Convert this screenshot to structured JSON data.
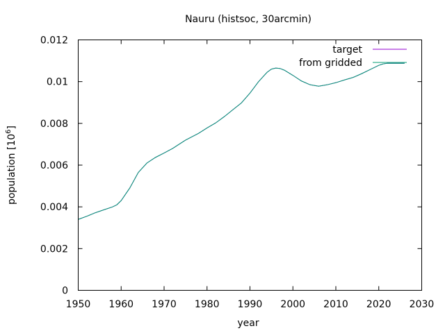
{
  "chart_data": {
    "type": "line",
    "title": "Nauru (histsoc, 30arcmin)",
    "xlabel": "year",
    "ylabel_text": "population [10",
    "ylabel_exp": "6",
    "ylabel_close": "]",
    "xlim": [
      1950,
      2030
    ],
    "ylim": [
      0,
      0.012
    ],
    "x_ticks": [
      1950,
      1960,
      1970,
      1980,
      1990,
      2000,
      2010,
      2020,
      2030
    ],
    "x_tick_labels": [
      "1950",
      "1960",
      "1970",
      "1980",
      "1990",
      "2000",
      "2010",
      "2020",
      "2030"
    ],
    "y_ticks": [
      0,
      0.002,
      0.004,
      0.006,
      0.008,
      0.01,
      0.012
    ],
    "y_tick_labels": [
      "0",
      "0.002",
      "0.004",
      "0.006",
      "0.008",
      "0.01",
      "0.012"
    ],
    "grid": false,
    "legend_position": "top-right",
    "series": [
      {
        "name": "target",
        "color": "#9400d3",
        "x": [
          1950,
          1952,
          1954,
          1956,
          1958,
          1959,
          1960,
          1962,
          1964,
          1966,
          1968,
          1970,
          1972,
          1975,
          1978,
          1980,
          1982,
          1984,
          1986,
          1988,
          1990,
          1992,
          1994,
          1995,
          1996,
          1997,
          1998,
          2000,
          2002,
          2004,
          2006,
          2008,
          2010,
          2012,
          2014,
          2016,
          2018,
          2020,
          2021,
          2022,
          2024,
          2026
        ],
        "y": [
          0.0034,
          0.00355,
          0.00372,
          0.00386,
          0.004,
          0.0041,
          0.0043,
          0.0049,
          0.00565,
          0.0061,
          0.00637,
          0.00658,
          0.0068,
          0.0072,
          0.00752,
          0.00778,
          0.00802,
          0.00832,
          0.00865,
          0.00898,
          0.00945,
          0.01,
          0.01045,
          0.0106,
          0.01065,
          0.01063,
          0.01055,
          0.0103,
          0.01003,
          0.00985,
          0.00978,
          0.00985,
          0.00995,
          0.01008,
          0.0102,
          0.01038,
          0.01058,
          0.01078,
          0.01085,
          0.01088,
          0.01088,
          0.01088
        ]
      },
      {
        "name": "from gridded",
        "color": "#009e73",
        "x": [
          1950,
          1952,
          1954,
          1956,
          1958,
          1959,
          1960,
          1962,
          1964,
          1966,
          1968,
          1970,
          1972,
          1975,
          1978,
          1980,
          1982,
          1984,
          1986,
          1988,
          1990,
          1992,
          1994,
          1995,
          1996,
          1997,
          1998,
          2000,
          2002,
          2004,
          2006,
          2008,
          2010,
          2012,
          2014,
          2016,
          2018,
          2020,
          2021,
          2022,
          2024,
          2026
        ],
        "y": [
          0.0034,
          0.00355,
          0.00372,
          0.00386,
          0.004,
          0.0041,
          0.0043,
          0.0049,
          0.00565,
          0.0061,
          0.00637,
          0.00658,
          0.0068,
          0.0072,
          0.00752,
          0.00778,
          0.00802,
          0.00832,
          0.00865,
          0.00898,
          0.00945,
          0.01,
          0.01045,
          0.0106,
          0.01065,
          0.01063,
          0.01055,
          0.0103,
          0.01003,
          0.00985,
          0.00978,
          0.00985,
          0.00995,
          0.01008,
          0.0102,
          0.01038,
          0.01058,
          0.01078,
          0.01085,
          0.01088,
          0.01088,
          0.01088
        ]
      }
    ]
  }
}
